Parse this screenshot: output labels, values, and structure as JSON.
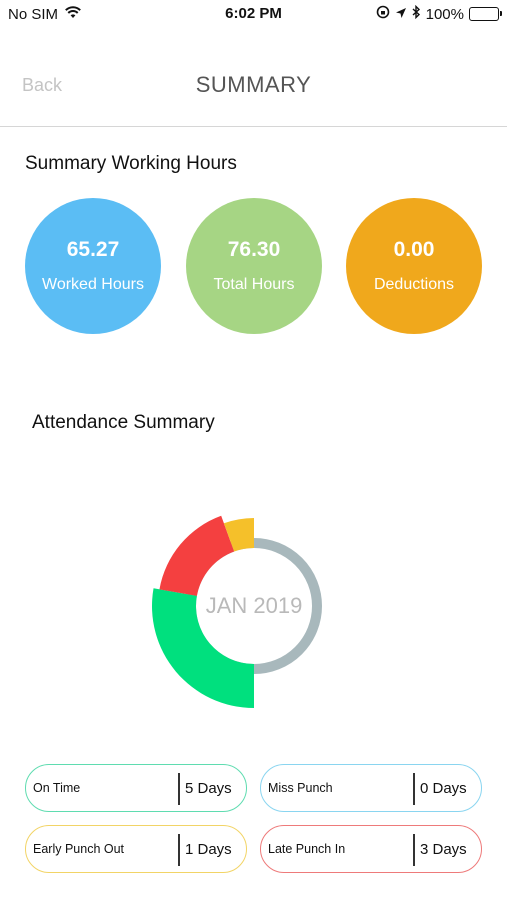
{
  "status_bar": {
    "carrier": "No SIM",
    "time": "6:02 PM",
    "battery": "100%"
  },
  "nav": {
    "back_label": "Back",
    "title": "SUMMARY"
  },
  "working_hours": {
    "title": "Summary Working Hours",
    "worked": {
      "value": "65.27",
      "label": "Worked Hours",
      "color": "#5bbdf4"
    },
    "total": {
      "value": "76.30",
      "label": "Total Hours",
      "color": "#a6d584"
    },
    "deductions": {
      "value": "0.00",
      "label": "Deductions",
      "color": "#f0a81c"
    }
  },
  "attendance": {
    "title": "Attendance Summary",
    "month": "JAN 2019",
    "stats": {
      "on_time": {
        "label": "On Time",
        "value": "5 Days",
        "color": "#00e07e"
      },
      "miss_punch": {
        "label": "Miss Punch",
        "value": "0 Days",
        "color": "#8ad5f0"
      },
      "early_punch_out": {
        "label": "Early Punch Out",
        "value": "1 Days",
        "color": "#f5c02a"
      },
      "late_punch_in": {
        "label": "Late Punch In",
        "value": "3 Days",
        "color": "#f44040"
      }
    },
    "ring_color": "#a8b8bc"
  },
  "chart_data": {
    "type": "pie",
    "categories": [
      "On Time",
      "Late Punch In",
      "Early Punch Out",
      "Miss Punch"
    ],
    "values": [
      5,
      3,
      1,
      0
    ],
    "colors": [
      "#00e07e",
      "#f44040",
      "#f5c02a",
      "#8ad5f0"
    ],
    "title": "JAN 2019"
  }
}
